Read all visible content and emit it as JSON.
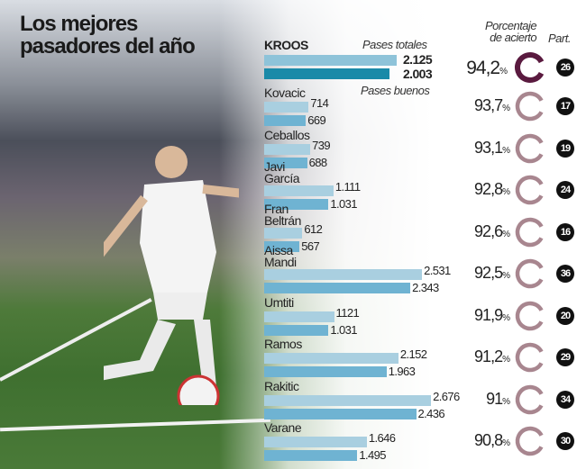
{
  "title": [
    "Los mejores",
    "pasadores del año"
  ],
  "labels": {
    "total": "Pases totales",
    "good": "Pases buenos",
    "pct_header": [
      "Porcentaje",
      "de acierto"
    ],
    "part_header": "Part.",
    "pct_suffix": "%"
  },
  "colors": {
    "total_bar": "#a9cfe0",
    "good_bar": "#6fb3d2",
    "kroos_total": "#8ec3d9",
    "kroos_good": "#1a8aa8",
    "highlight_ring": "#5a1a3f",
    "ring": "#a8868f"
  },
  "chart_data": {
    "type": "bar",
    "categories": [
      "KROOS",
      "Kovacic",
      "Ceballos",
      "Javi García",
      "Fran Beltrán",
      "Aissa Mandi",
      "Umtiti",
      "Ramos",
      "Rakitic",
      "Varane"
    ],
    "series": [
      {
        "name": "Pases totales",
        "values": [
          2125,
          714,
          739,
          1111,
          612,
          2531,
          1121,
          2152,
          2676,
          1646
        ],
        "labels": [
          "2.125",
          "714",
          "739",
          "1.111",
          "612",
          "2.531",
          "1121",
          "2.152",
          "2.676",
          "1.646"
        ]
      },
      {
        "name": "Pases buenos",
        "values": [
          2003,
          669,
          688,
          1031,
          567,
          2343,
          1031,
          1963,
          2436,
          1495
        ],
        "labels": [
          "2.003",
          "669",
          "688",
          "1.031",
          "567",
          "2.343",
          "1.031",
          "1.963",
          "2.436",
          "1.495"
        ]
      }
    ],
    "accuracy_pct": [
      "94,2",
      "93,7",
      "93,1",
      "92,8",
      "92,6",
      "92,5",
      "91,9",
      "91,2",
      "91",
      "90,8"
    ],
    "accuracy_values": [
      94.2,
      93.7,
      93.1,
      92.8,
      92.6,
      92.5,
      91.9,
      91.2,
      91,
      90.8
    ],
    "matches": [
      26,
      17,
      19,
      24,
      16,
      36,
      20,
      29,
      34,
      30
    ]
  }
}
